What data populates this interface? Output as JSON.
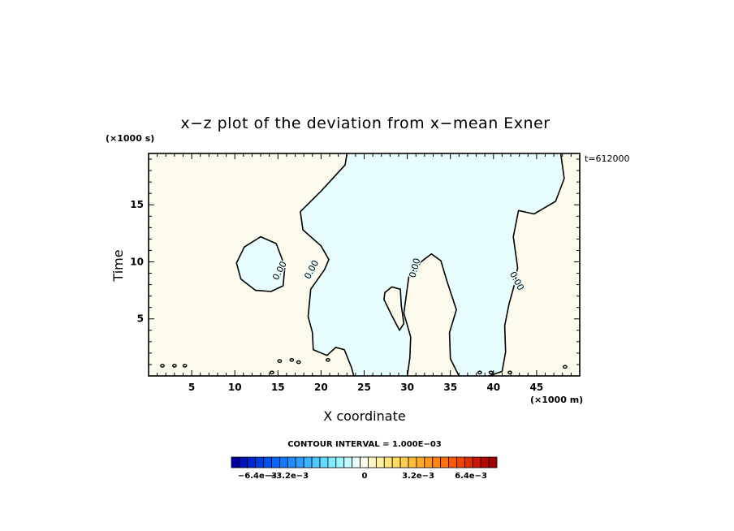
{
  "chart_data": {
    "type": "contour",
    "title": "x−z plot of the deviation from x−mean Exner",
    "xlabel": "X coordinate",
    "ylabel": "Time",
    "x_unit": "(×1000 m)",
    "y_unit": "(×1000 s)",
    "time_stamp": "t=612000",
    "xlim": [
      0,
      50
    ],
    "ylim": [
      0,
      19.5
    ],
    "x_ticks": [
      5,
      10,
      15,
      20,
      25,
      30,
      35,
      40,
      45
    ],
    "y_ticks": [
      5,
      10,
      15
    ],
    "contour_interval_text": "CONTOUR INTERVAL = 1.000E−03",
    "contour_labels": [
      "0.00",
      "0.00",
      "0.00",
      "0.00"
    ],
    "fill_colors": {
      "positive": "#fbfaec",
      "negative": "#e8fefe"
    },
    "zero_contours": [
      {
        "name": "central-negative-region",
        "points": [
          [
            23,
            19.5
          ],
          [
            22.8,
            18.5
          ],
          [
            20,
            16.2
          ],
          [
            17.6,
            14.4
          ],
          [
            17.9,
            12.8
          ],
          [
            20,
            11.4
          ],
          [
            20.9,
            10.2
          ],
          [
            20.4,
            9.3
          ],
          [
            18.8,
            7.6
          ],
          [
            18.5,
            5.2
          ],
          [
            19,
            3.8
          ],
          [
            19.1,
            2.3
          ],
          [
            20.7,
            1.8
          ],
          [
            21.7,
            2.5
          ],
          [
            22.7,
            2.3
          ],
          [
            23.5,
            0.8
          ],
          [
            23.8,
            0
          ],
          [
            30,
            0
          ],
          [
            30.3,
            1.6
          ],
          [
            30.4,
            3.4
          ],
          [
            29.6,
            5.5
          ],
          [
            30.2,
            8.8
          ],
          [
            31.6,
            10
          ],
          [
            32.8,
            10.7
          ],
          [
            33.9,
            10.1
          ],
          [
            34.6,
            8.3
          ],
          [
            35.7,
            5.8
          ],
          [
            34.9,
            3.8
          ],
          [
            35,
            1.5
          ],
          [
            35.8,
            0.3
          ],
          [
            36,
            0
          ],
          [
            39.5,
            0
          ],
          [
            41,
            0.4
          ],
          [
            41.4,
            2.1
          ],
          [
            41.3,
            4.4
          ],
          [
            41.8,
            6.3
          ],
          [
            42.5,
            8.2
          ],
          [
            42.8,
            9.5
          ],
          [
            42.3,
            12.2
          ],
          [
            42.9,
            14.5
          ],
          [
            44.7,
            14.2
          ],
          [
            47.2,
            15.3
          ],
          [
            48.2,
            17.3
          ],
          [
            47.8,
            19.5
          ]
        ]
      },
      {
        "name": "left-negative-island",
        "points": [
          [
            10.2,
            9.9
          ],
          [
            11.1,
            11.3
          ],
          [
            13,
            12.2
          ],
          [
            14.8,
            11.6
          ],
          [
            15.8,
            9.6
          ],
          [
            15.6,
            7.9
          ],
          [
            14.2,
            7.4
          ],
          [
            12.4,
            7.5
          ],
          [
            10.7,
            8.5
          ]
        ]
      },
      {
        "name": "center-positive-island",
        "points": [
          [
            27.3,
            6.7
          ],
          [
            28.2,
            5.3
          ],
          [
            29.1,
            4
          ],
          [
            29.6,
            4.6
          ],
          [
            29.3,
            6.2
          ],
          [
            29.2,
            7.6
          ],
          [
            28.2,
            7.8
          ],
          [
            27.4,
            7.3
          ]
        ]
      }
    ],
    "colorbar": {
      "labels": [
        "−6.4e−3",
        "−3.2e−3",
        "0",
        "3.2e−3",
        "6.4e−3"
      ],
      "colors": [
        "#0000a0",
        "#0014b8",
        "#0028d0",
        "#003ce0",
        "#0050f0",
        "#0a64ff",
        "#1478ff",
        "#208cff",
        "#2ca0ff",
        "#3cb4ff",
        "#50c8ff",
        "#64dcff",
        "#80ecff",
        "#a0f6ff",
        "#c4fcff",
        "#e8fefe",
        "#fbfaec",
        "#fff6c4",
        "#fff0a0",
        "#ffe680",
        "#ffda64",
        "#ffcc50",
        "#ffbc3c",
        "#ffaa2c",
        "#ff9820",
        "#ff8414",
        "#ff700a",
        "#fc5a00",
        "#f04400",
        "#e02e00",
        "#cc1800",
        "#b80600",
        "#a00000"
      ]
    }
  }
}
